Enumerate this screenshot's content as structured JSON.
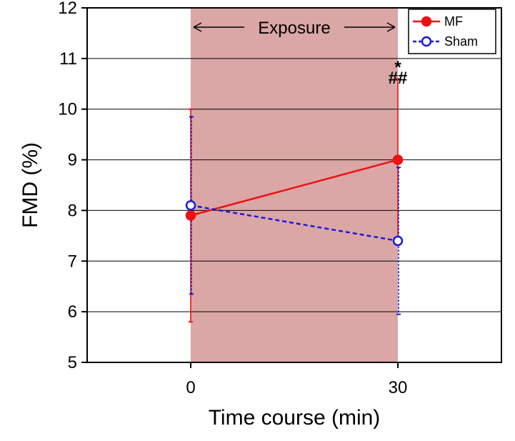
{
  "chart_data": {
    "type": "line",
    "xlabel": "Time course (min)",
    "ylabel": "FMD (%)",
    "xlim": [
      -15,
      45
    ],
    "ylim": [
      5,
      12
    ],
    "x_ticks": [
      0,
      30
    ],
    "y_ticks": [
      5,
      6,
      7,
      8,
      9,
      10,
      11,
      12
    ],
    "grid": "horizontal",
    "legend_position": "top-right",
    "shaded_region": {
      "x_start": 0,
      "x_end": 30,
      "label": "Exposure",
      "color": "#dba6a6"
    },
    "series": [
      {
        "name": "MF",
        "x": [
          0,
          30
        ],
        "y": [
          7.9,
          9.0
        ],
        "error": [
          2.1,
          1.6
        ],
        "color": "#ee1111",
        "line_style": "solid",
        "marker": "filled-circle"
      },
      {
        "name": "Sham",
        "x": [
          0,
          30
        ],
        "y": [
          8.1,
          7.4
        ],
        "error": [
          1.75,
          1.45
        ],
        "color": "#1a1adb",
        "line_style": "dashed",
        "marker": "open-circle"
      }
    ],
    "annotations": [
      {
        "text": "*",
        "x": 30,
        "y": 11.0
      },
      {
        "text": "##",
        "x": 30,
        "y": 10.7
      }
    ]
  }
}
